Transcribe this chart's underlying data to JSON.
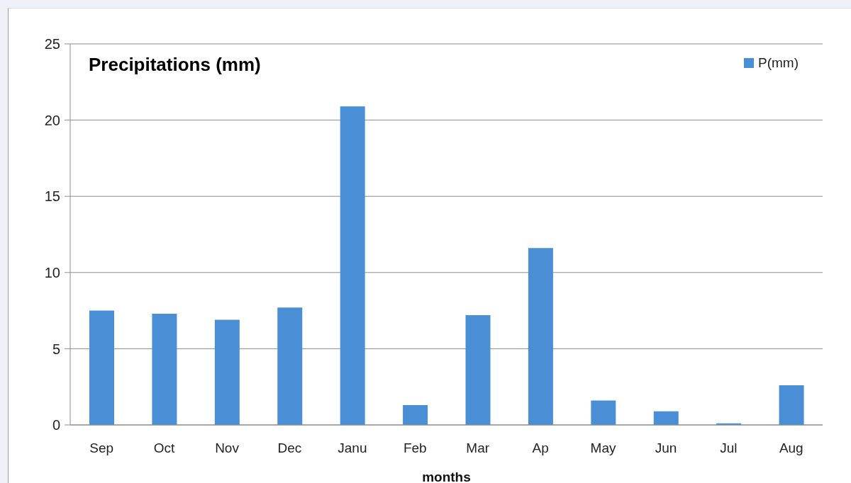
{
  "chart_data": {
    "type": "bar",
    "title": "Precipitations (mm)",
    "xlabel": "months",
    "categories": [
      "Sep",
      "Oct",
      "Nov",
      "Dec",
      "Janu",
      "Feb",
      "Mar",
      "Ap",
      "May",
      "Jun",
      "Jul",
      "Aug"
    ],
    "series": [
      {
        "name": "P(mm)",
        "color": "#4a8fd6",
        "values": [
          7.5,
          7.3,
          6.9,
          7.7,
          20.9,
          1.3,
          7.2,
          11.6,
          1.6,
          0.9,
          0.1,
          2.6
        ]
      }
    ],
    "ylim": [
      0,
      25
    ],
    "yticks": [
      0,
      5,
      10,
      15,
      20,
      25
    ],
    "grid": "y",
    "legend": "top right"
  }
}
